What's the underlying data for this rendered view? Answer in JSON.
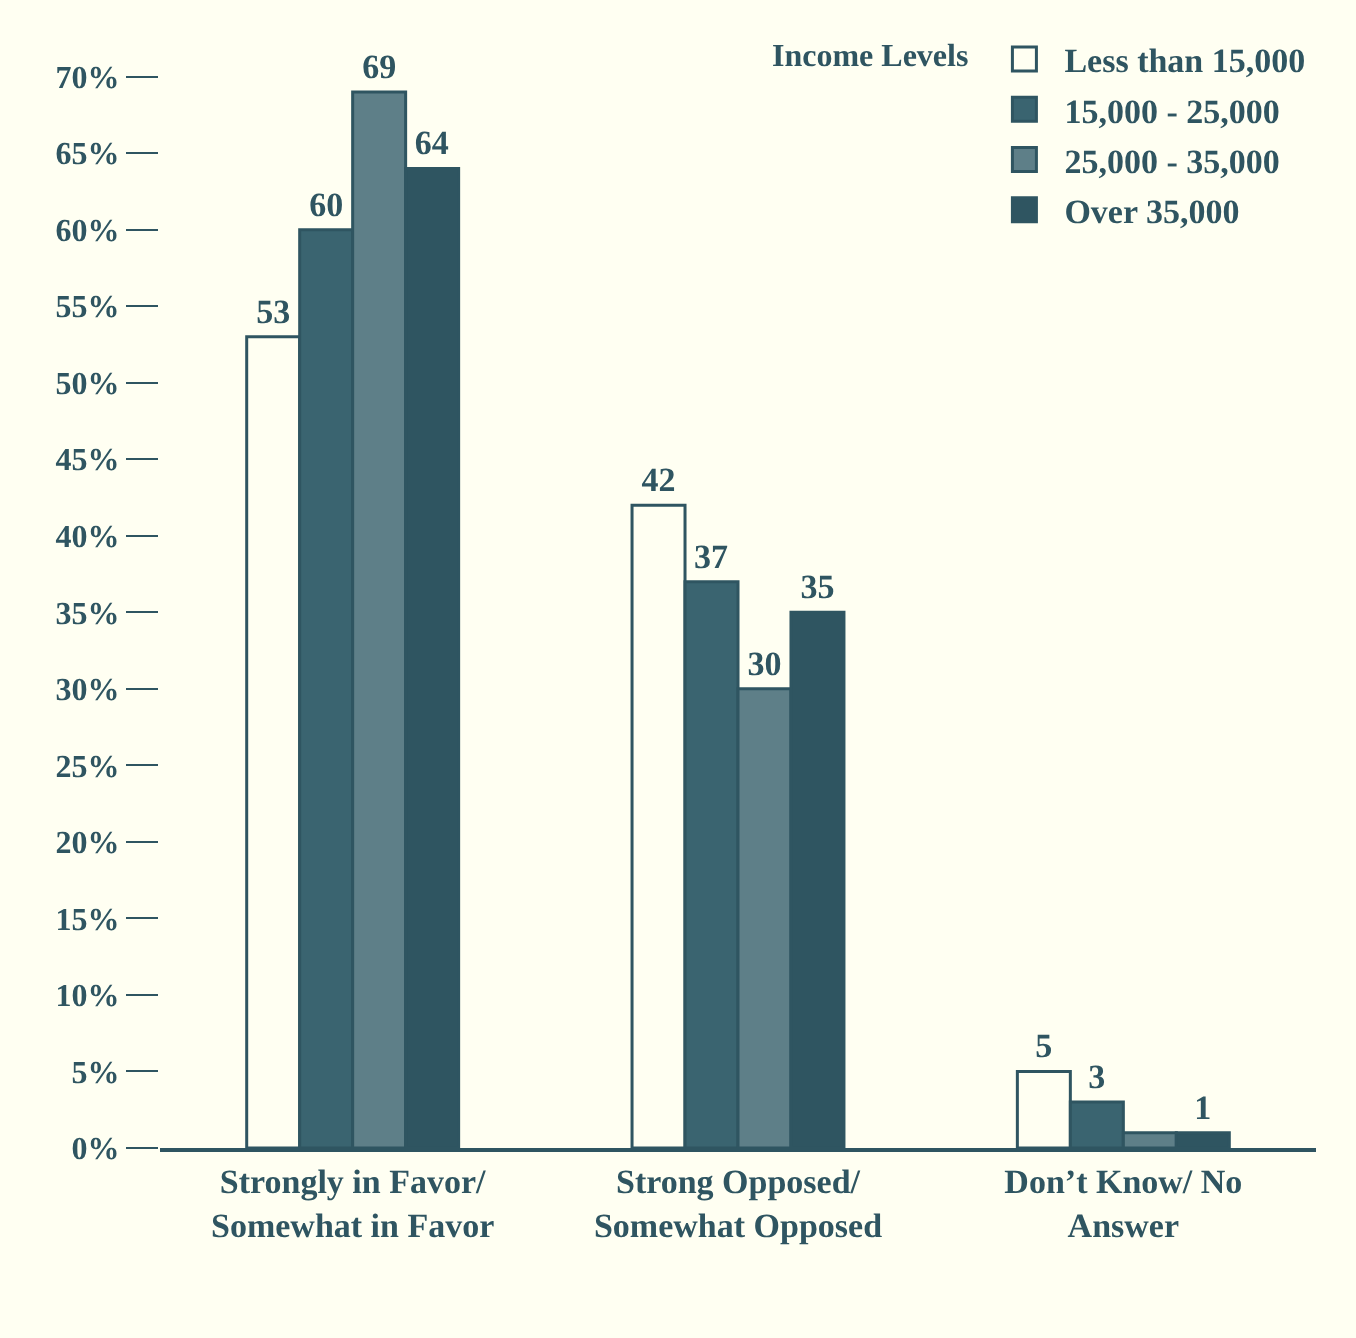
{
  "chart_data": {
    "type": "bar",
    "legend_title": "Income Levels",
    "categories": [
      "Strongly in Favor/ Somewhat in Favor",
      "Strong Opposed/ Somewhat Opposed",
      "Don’t Know/ No Answer"
    ],
    "series": [
      {
        "name": "Less than 15,000",
        "color": "#fffff2",
        "values": [
          53,
          42,
          5
        ],
        "value_labels": [
          "53",
          "42",
          "5"
        ]
      },
      {
        "name": "15,000 - 25,000",
        "color": "#3a6470",
        "values": [
          60,
          37,
          3
        ],
        "value_labels": [
          "60",
          "37",
          "3"
        ]
      },
      {
        "name": "25,000 - 35,000",
        "color": "#5e7f88",
        "values": [
          69,
          30,
          1
        ],
        "value_labels": [
          "69",
          "30",
          null
        ]
      },
      {
        "name": "Over 35,000",
        "color": "#2f5561",
        "values": [
          64,
          35,
          1
        ],
        "value_labels": [
          "64",
          "35",
          "1"
        ]
      }
    ],
    "ylim": [
      0,
      72
    ],
    "yticks": [
      {
        "value": 0,
        "label": "0%"
      },
      {
        "value": 5,
        "label": "5%"
      },
      {
        "value": 10,
        "label": "10%"
      },
      {
        "value": 15,
        "label": "15%"
      },
      {
        "value": 20,
        "label": "20%"
      },
      {
        "value": 25,
        "label": "25%"
      },
      {
        "value": 30,
        "label": "30%"
      },
      {
        "value": 35,
        "label": "35%"
      },
      {
        "value": 40,
        "label": "40%"
      },
      {
        "value": 45,
        "label": "45%"
      },
      {
        "value": 50,
        "label": "50%"
      },
      {
        "value": 55,
        "label": "55%"
      },
      {
        "value": 60,
        "label": "60%"
      },
      {
        "value": 65,
        "label": "65%"
      },
      {
        "value": 70,
        "label": "70%"
      }
    ],
    "grid": false,
    "legend": "top right"
  }
}
